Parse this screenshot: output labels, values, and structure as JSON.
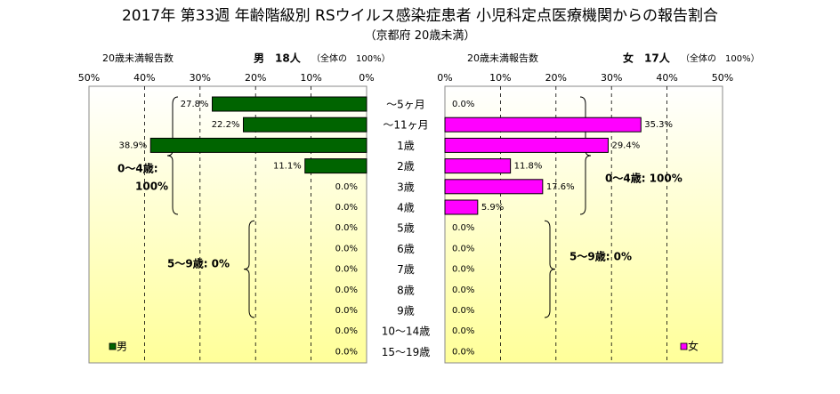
{
  "title": "2017年 第33週 年齢階級別 RSウイルス感染症患者 小児科定点医療機関からの報告割合",
  "subtitle": "（京都府 20歳未満）",
  "colors": {
    "male": "#006400",
    "female": "#ff00ff",
    "plot_top": "#ffffff",
    "plot_bottom": "#ffff99"
  },
  "chart_data": [
    {
      "type": "bar",
      "orientation": "horizontal",
      "direction": "reversed",
      "header_left": "20歳未満報告数",
      "header_right": "男　18人",
      "header_total": "（全体の　100%）",
      "xticks": [
        "50%",
        "40%",
        "30%",
        "20%",
        "10%",
        "0%"
      ],
      "xlim": [
        0,
        50
      ],
      "categories": [
        "～5ヶ月",
        "～11ヶ月",
        "1歳",
        "2歳",
        "3歳",
        "4歳",
        "5歳",
        "6歳",
        "7歳",
        "8歳",
        "9歳",
        "10～14歳",
        "15～19歳"
      ],
      "values": [
        27.8,
        22.2,
        38.9,
        11.1,
        0,
        0,
        0,
        0,
        0,
        0,
        0,
        0,
        0
      ],
      "value_labels": [
        "27.8%",
        "22.2%",
        "38.9%",
        "11.1%",
        "0.0%",
        "0.0%",
        "0.0%",
        "0.0%",
        "0.0%",
        "0.0%",
        "0.0%",
        "0.0%",
        "0.0%"
      ],
      "legend": "男",
      "legend_position": "bottom-left",
      "annotations": [
        "0～4歳:",
        "100%",
        "5～9歳: 0%"
      ]
    },
    {
      "type": "bar",
      "orientation": "horizontal",
      "header_left": "20歳未満報告数",
      "header_right": "女　17人",
      "header_total": "（全体の　100%）",
      "xticks": [
        "0%",
        "10%",
        "20%",
        "30%",
        "40%",
        "50%"
      ],
      "xlim": [
        0,
        50
      ],
      "categories": [
        "～5ヶ月",
        "～11ヶ月",
        "1歳",
        "2歳",
        "3歳",
        "4歳",
        "5歳",
        "6歳",
        "7歳",
        "8歳",
        "9歳",
        "10～14歳",
        "15～19歳"
      ],
      "values": [
        0,
        35.3,
        29.4,
        11.8,
        17.6,
        5.9,
        0,
        0,
        0,
        0,
        0,
        0,
        0
      ],
      "value_labels": [
        "0.0%",
        "35.3%",
        "29.4%",
        "11.8%",
        "17.6%",
        "5.9%",
        "0.0%",
        "0.0%",
        "0.0%",
        "0.0%",
        "0.0%",
        "0.0%",
        "0.0%"
      ],
      "legend": "女",
      "legend_position": "bottom-right",
      "annotations": [
        "0～4歳: 100%",
        "5～9歳: 0%"
      ]
    }
  ]
}
